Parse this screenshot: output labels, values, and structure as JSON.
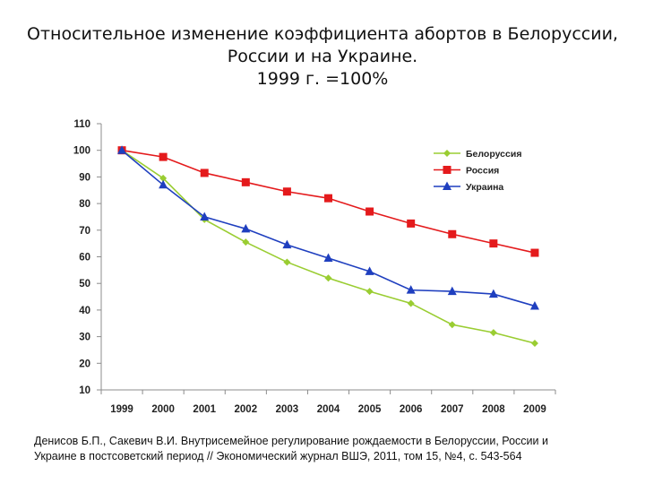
{
  "title_lines": [
    "Относительное изменение коэффициента абортов в Белоруссии,",
    "России и на Украине.",
    "1999 г. =100%"
  ],
  "caption_lines": [
    "Денисов Б.П., Сакевич В.И. Внутрисемейное регулирование рождаемости в Белоруссии, России и",
    "Украине в постсоветский период // Экономический журнал ВШЭ, 2011, том 15, №4, с. 543-564"
  ],
  "chart_data": {
    "type": "line",
    "title": "Относительное изменение коэффициента абортов в Белоруссии, России и на Украине. 1999 г. =100%",
    "xlabel": "",
    "ylabel": "",
    "categories": [
      "1999",
      "2000",
      "2001",
      "2002",
      "2003",
      "2004",
      "2005",
      "2006",
      "2007",
      "2008",
      "2009"
    ],
    "ylim": [
      10,
      110
    ],
    "yticks": [
      "10",
      "20",
      "30",
      "40",
      "50",
      "60",
      "70",
      "80",
      "90",
      "100",
      "110"
    ],
    "grid": false,
    "legend_position": "right",
    "series": [
      {
        "name": "Белоруссия",
        "color": "#9acd32",
        "marker": "diamond",
        "values": [
          100,
          89.5,
          74,
          65.5,
          58,
          52,
          47,
          42.5,
          34.5,
          31.5,
          27.5
        ]
      },
      {
        "name": "Россия",
        "color": "#e41a1c",
        "marker": "square",
        "values": [
          100,
          97.5,
          91.5,
          88,
          84.5,
          82,
          77,
          72.5,
          68.5,
          65,
          61.5
        ]
      },
      {
        "name": "Украина",
        "color": "#1f3fbf",
        "marker": "triangle",
        "values": [
          100,
          87,
          75,
          70.5,
          64.5,
          59.5,
          54.5,
          47.5,
          47,
          46,
          41.5
        ]
      }
    ]
  }
}
